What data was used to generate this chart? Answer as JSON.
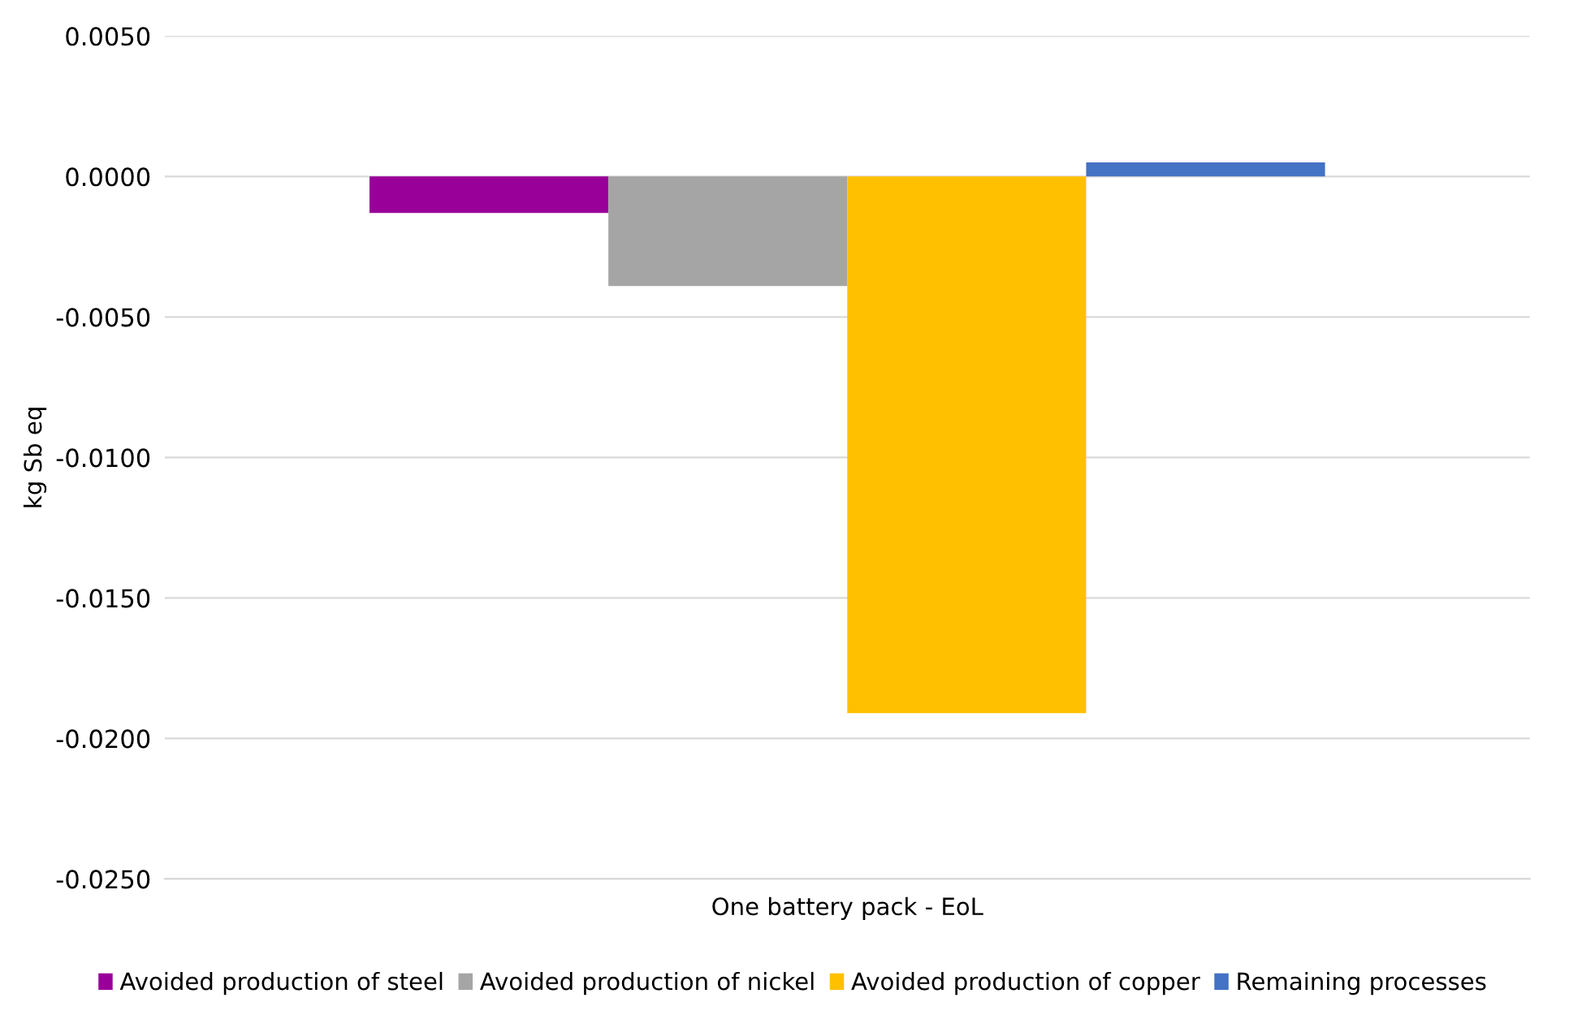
{
  "chart_data": {
    "type": "bar",
    "ylabel": "kg Sb eq",
    "categories": [
      "One battery pack - EoL"
    ],
    "series": [
      {
        "name": "Avoided production of steel",
        "color": "#990099",
        "values": [
          -0.0013
        ]
      },
      {
        "name": "Avoided production of nickel",
        "color": "#a5a5a5",
        "values": [
          -0.0039
        ]
      },
      {
        "name": "Avoided production of copper",
        "color": "#ffc000",
        "values": [
          -0.0191
        ]
      },
      {
        "name": "Remaining processes",
        "color": "#4472c4",
        "values": [
          0.0005
        ]
      }
    ],
    "ylim": [
      -0.025,
      0.005
    ],
    "yticks": [
      {
        "value": -0.025,
        "label": "-0.0250"
      },
      {
        "value": -0.02,
        "label": "-0.0200"
      },
      {
        "value": -0.015,
        "label": "-0.0150"
      },
      {
        "value": -0.01,
        "label": "-0.0100"
      },
      {
        "value": -0.005,
        "label": "-0.0050"
      },
      {
        "value": 0,
        "label": "0.0000"
      },
      {
        "value": 0.005,
        "label": "0.0050"
      }
    ],
    "grid": "y",
    "legend": "bottom"
  }
}
